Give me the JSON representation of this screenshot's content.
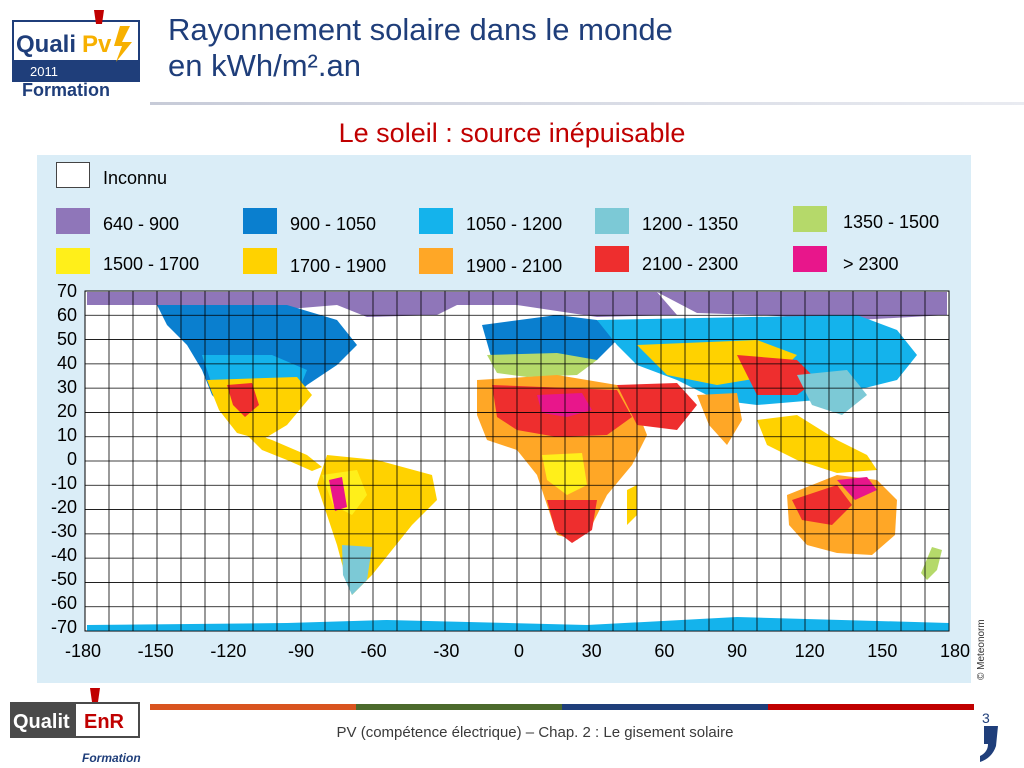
{
  "header": {
    "logo": {
      "brand": "Quali",
      "brand_accent": "Pv",
      "year": "2011",
      "sub": "Formation"
    },
    "title_line1": "Rayonnement solaire dans le monde",
    "title_line2": "en kWh/m².an",
    "subtitle": "Le soleil : source inépuisable"
  },
  "legend": {
    "unknown_label": "Inconnu",
    "items": [
      {
        "label": "640 - 900",
        "color": "#8f76b9"
      },
      {
        "label": "900 - 1050",
        "color": "#0a7fcf"
      },
      {
        "label": "1050 - 1200",
        "color": "#14b3ec"
      },
      {
        "label": "1200 - 1350",
        "color": "#7cc9d6"
      },
      {
        "label": "1350 - 1500",
        "color": "#b5d96a"
      },
      {
        "label": "1500 - 1700",
        "color": "#ffef1a"
      },
      {
        "label": "1700 - 1900",
        "color": "#ffd200"
      },
      {
        "label": "1900 - 2100",
        "color": "#ffa726"
      },
      {
        "label": "2100 - 2300",
        "color": "#ee2e2e"
      },
      {
        "label": "> 2300",
        "color": "#e8168b"
      }
    ]
  },
  "map": {
    "lat_ticks": [
      "70",
      "60",
      "50",
      "40",
      "30",
      "20",
      "10",
      "0",
      "-10",
      "-20",
      "-30",
      "-40",
      "-50",
      "-60",
      "-70"
    ],
    "lon_ticks": [
      "-180",
      "-150",
      "-120",
      "-90",
      "-60",
      "-30",
      "0",
      "30",
      "60",
      "90",
      "120",
      "150",
      "180"
    ],
    "ocean_color": "#ffffff",
    "credit": "© Meteonorm"
  },
  "footer": {
    "text": "PV (compétence électrique) – Chap. 2 : Le gisement solaire",
    "page": "3",
    "logo": {
      "brand": "Qualit",
      "brand_accent": "EnR",
      "sub": "Formation"
    },
    "bar_colors": [
      "#d9541f",
      "#4c6a2c",
      "#1f3e7a",
      "#c00000"
    ]
  }
}
